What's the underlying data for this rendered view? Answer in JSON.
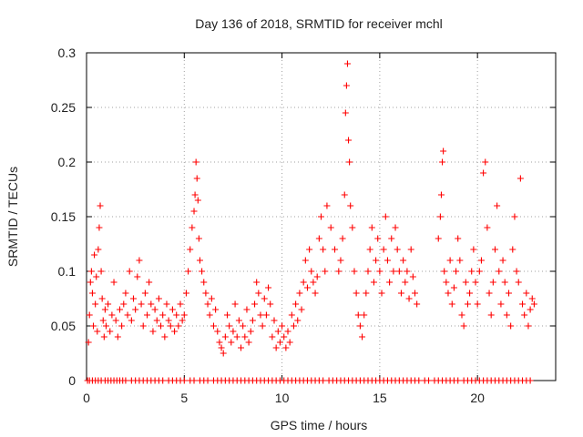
{
  "chart_data": {
    "type": "scatter",
    "title": "Day 136 of 2018, SRMTID for receiver mchl",
    "xlabel": "GPS time / hours",
    "ylabel": "SRMTID / TECUs",
    "xlim": [
      0,
      24
    ],
    "ylim": [
      0,
      0.3
    ],
    "grid": true,
    "marker": "+",
    "color": "#ff0000",
    "x_ticks": [
      0,
      5,
      10,
      15,
      20
    ],
    "x_tick_labels": [
      "0",
      "5",
      "10",
      "15",
      "20"
    ],
    "y_ticks": [
      0,
      0.05,
      0.1,
      0.15,
      0.2,
      0.25,
      0.3
    ],
    "y_tick_labels": [
      "0",
      "0.05",
      "0.1",
      "0.15",
      "0.2",
      "0.25",
      "0.3"
    ],
    "series": [
      {
        "name": "SRMTID",
        "points": [
          [
            0.1,
            0.035
          ],
          [
            0.15,
            0.06
          ],
          [
            0.2,
            0.09
          ],
          [
            0.25,
            0.1
          ],
          [
            0.3,
            0.08
          ],
          [
            0.35,
            0.05
          ],
          [
            0.4,
            0.115
          ],
          [
            0.45,
            0.07
          ],
          [
            0.5,
            0.095
          ],
          [
            0.55,
            0.045
          ],
          [
            0.6,
            0.12
          ],
          [
            0.65,
            0.14
          ],
          [
            0.7,
            0.16
          ],
          [
            0.75,
            0.1
          ],
          [
            0.8,
            0.075
          ],
          [
            0.85,
            0.055
          ],
          [
            0.9,
            0.04
          ],
          [
            0.95,
            0.065
          ],
          [
            1.0,
            0.05
          ],
          [
            1.1,
            0.07
          ],
          [
            1.2,
            0.045
          ],
          [
            1.3,
            0.06
          ],
          [
            1.4,
            0.09
          ],
          [
            1.5,
            0.055
          ],
          [
            1.6,
            0.04
          ],
          [
            1.7,
            0.065
          ],
          [
            1.8,
            0.05
          ],
          [
            1.9,
            0.07
          ],
          [
            2.0,
            0.08
          ],
          [
            2.1,
            0.06
          ],
          [
            2.2,
            0.1
          ],
          [
            2.3,
            0.055
          ],
          [
            2.4,
            0.075
          ],
          [
            2.5,
            0.065
          ],
          [
            2.6,
            0.095
          ],
          [
            2.7,
            0.11
          ],
          [
            2.8,
            0.07
          ],
          [
            2.9,
            0.05
          ],
          [
            3.0,
            0.08
          ],
          [
            3.1,
            0.06
          ],
          [
            3.2,
            0.09
          ],
          [
            3.3,
            0.07
          ],
          [
            3.4,
            0.045
          ],
          [
            3.5,
            0.065
          ],
          [
            3.6,
            0.055
          ],
          [
            3.7,
            0.075
          ],
          [
            3.8,
            0.05
          ],
          [
            3.9,
            0.06
          ],
          [
            4.0,
            0.04
          ],
          [
            4.1,
            0.07
          ],
          [
            4.2,
            0.055
          ],
          [
            4.3,
            0.05
          ],
          [
            4.4,
            0.065
          ],
          [
            4.5,
            0.045
          ],
          [
            4.6,
            0.06
          ],
          [
            4.7,
            0.05
          ],
          [
            4.8,
            0.07
          ],
          [
            4.9,
            0.055
          ],
          [
            5.0,
            0.06
          ],
          [
            5.1,
            0.08
          ],
          [
            5.2,
            0.1
          ],
          [
            5.3,
            0.12
          ],
          [
            5.4,
            0.14
          ],
          [
            5.5,
            0.155
          ],
          [
            5.55,
            0.17
          ],
          [
            5.6,
            0.2
          ],
          [
            5.65,
            0.185
          ],
          [
            5.7,
            0.165
          ],
          [
            5.75,
            0.13
          ],
          [
            5.8,
            0.11
          ],
          [
            5.9,
            0.1
          ],
          [
            6.0,
            0.09
          ],
          [
            6.1,
            0.08
          ],
          [
            6.2,
            0.07
          ],
          [
            6.3,
            0.06
          ],
          [
            6.4,
            0.075
          ],
          [
            6.5,
            0.05
          ],
          [
            6.6,
            0.065
          ],
          [
            6.7,
            0.045
          ],
          [
            6.8,
            0.035
          ],
          [
            6.9,
            0.03
          ],
          [
            7.0,
            0.025
          ],
          [
            7.1,
            0.04
          ],
          [
            7.2,
            0.06
          ],
          [
            7.3,
            0.05
          ],
          [
            7.4,
            0.035
          ],
          [
            7.5,
            0.045
          ],
          [
            7.6,
            0.07
          ],
          [
            7.7,
            0.04
          ],
          [
            7.8,
            0.055
          ],
          [
            7.9,
            0.03
          ],
          [
            8.0,
            0.05
          ],
          [
            8.1,
            0.04
          ],
          [
            8.2,
            0.065
          ],
          [
            8.3,
            0.035
          ],
          [
            8.4,
            0.045
          ],
          [
            8.5,
            0.055
          ],
          [
            8.6,
            0.07
          ],
          [
            8.7,
            0.09
          ],
          [
            8.8,
            0.08
          ],
          [
            8.9,
            0.06
          ],
          [
            9.0,
            0.05
          ],
          [
            9.1,
            0.075
          ],
          [
            9.2,
            0.06
          ],
          [
            9.3,
            0.085
          ],
          [
            9.4,
            0.07
          ],
          [
            9.5,
            0.04
          ],
          [
            9.6,
            0.055
          ],
          [
            9.7,
            0.03
          ],
          [
            9.8,
            0.045
          ],
          [
            9.9,
            0.035
          ],
          [
            10.0,
            0.05
          ],
          [
            10.1,
            0.04
          ],
          [
            10.2,
            0.03
          ],
          [
            10.3,
            0.045
          ],
          [
            10.4,
            0.035
          ],
          [
            10.5,
            0.06
          ],
          [
            10.6,
            0.05
          ],
          [
            10.7,
            0.07
          ],
          [
            10.8,
            0.055
          ],
          [
            10.9,
            0.08
          ],
          [
            11.0,
            0.065
          ],
          [
            11.1,
            0.09
          ],
          [
            11.2,
            0.11
          ],
          [
            11.3,
            0.085
          ],
          [
            11.4,
            0.12
          ],
          [
            11.5,
            0.1
          ],
          [
            11.6,
            0.09
          ],
          [
            11.7,
            0.08
          ],
          [
            11.8,
            0.095
          ],
          [
            11.9,
            0.13
          ],
          [
            12.0,
            0.15
          ],
          [
            12.1,
            0.12
          ],
          [
            12.2,
            0.1
          ],
          [
            12.3,
            0.16
          ],
          [
            12.5,
            0.14
          ],
          [
            12.7,
            0.12
          ],
          [
            12.9,
            0.1
          ],
          [
            13.0,
            0.11
          ],
          [
            13.1,
            0.13
          ],
          [
            13.2,
            0.17
          ],
          [
            13.25,
            0.245
          ],
          [
            13.3,
            0.27
          ],
          [
            13.35,
            0.29
          ],
          [
            13.4,
            0.22
          ],
          [
            13.45,
            0.2
          ],
          [
            13.5,
            0.16
          ],
          [
            13.6,
            0.14
          ],
          [
            13.7,
            0.1
          ],
          [
            13.8,
            0.08
          ],
          [
            13.9,
            0.06
          ],
          [
            14.0,
            0.05
          ],
          [
            14.1,
            0.04
          ],
          [
            14.2,
            0.06
          ],
          [
            14.3,
            0.08
          ],
          [
            14.4,
            0.1
          ],
          [
            14.5,
            0.12
          ],
          [
            14.6,
            0.14
          ],
          [
            14.7,
            0.09
          ],
          [
            14.8,
            0.11
          ],
          [
            14.9,
            0.13
          ],
          [
            15.0,
            0.1
          ],
          [
            15.1,
            0.08
          ],
          [
            15.2,
            0.12
          ],
          [
            15.3,
            0.15
          ],
          [
            15.4,
            0.11
          ],
          [
            15.5,
            0.09
          ],
          [
            15.6,
            0.13
          ],
          [
            15.7,
            0.1
          ],
          [
            15.8,
            0.14
          ],
          [
            15.9,
            0.12
          ],
          [
            16.0,
            0.1
          ],
          [
            16.1,
            0.08
          ],
          [
            16.2,
            0.11
          ],
          [
            16.3,
            0.09
          ],
          [
            16.4,
            0.1
          ],
          [
            16.5,
            0.075
          ],
          [
            16.6,
            0.12
          ],
          [
            16.7,
            0.095
          ],
          [
            16.8,
            0.08
          ],
          [
            16.9,
            0.07
          ],
          [
            18.0,
            0.13
          ],
          [
            18.1,
            0.15
          ],
          [
            18.15,
            0.17
          ],
          [
            18.2,
            0.2
          ],
          [
            18.25,
            0.21
          ],
          [
            18.3,
            0.1
          ],
          [
            18.4,
            0.09
          ],
          [
            18.5,
            0.08
          ],
          [
            18.6,
            0.11
          ],
          [
            18.7,
            0.07
          ],
          [
            18.8,
            0.085
          ],
          [
            18.9,
            0.1
          ],
          [
            19.0,
            0.13
          ],
          [
            19.1,
            0.11
          ],
          [
            19.2,
            0.06
          ],
          [
            19.3,
            0.05
          ],
          [
            19.4,
            0.09
          ],
          [
            19.5,
            0.07
          ],
          [
            19.6,
            0.08
          ],
          [
            19.7,
            0.1
          ],
          [
            19.8,
            0.12
          ],
          [
            19.9,
            0.09
          ],
          [
            20.0,
            0.07
          ],
          [
            20.1,
            0.1
          ],
          [
            20.2,
            0.11
          ],
          [
            20.3,
            0.19
          ],
          [
            20.4,
            0.2
          ],
          [
            20.5,
            0.14
          ],
          [
            20.6,
            0.08
          ],
          [
            20.7,
            0.06
          ],
          [
            20.8,
            0.09
          ],
          [
            20.9,
            0.12
          ],
          [
            21.0,
            0.16
          ],
          [
            21.1,
            0.1
          ],
          [
            21.2,
            0.07
          ],
          [
            21.3,
            0.11
          ],
          [
            21.4,
            0.09
          ],
          [
            21.5,
            0.06
          ],
          [
            21.6,
            0.08
          ],
          [
            21.7,
            0.05
          ],
          [
            21.8,
            0.12
          ],
          [
            21.9,
            0.15
          ],
          [
            22.0,
            0.1
          ],
          [
            22.1,
            0.09
          ],
          [
            22.2,
            0.185
          ],
          [
            22.3,
            0.07
          ],
          [
            22.4,
            0.06
          ],
          [
            22.5,
            0.08
          ],
          [
            22.6,
            0.05
          ],
          [
            22.7,
            0.065
          ],
          [
            22.8,
            0.075
          ],
          [
            22.9,
            0.07
          ]
        ]
      }
    ],
    "zero_points_x": [
      0.05,
      0.15,
      0.3,
      0.45,
      0.6,
      0.75,
      0.95,
      1.1,
      1.25,
      1.4,
      1.55,
      1.7,
      1.85,
      2.0,
      2.3,
      2.5,
      2.7,
      2.9,
      3.1,
      3.3,
      3.5,
      3.7,
      3.9,
      4.2,
      4.4,
      4.6,
      4.8,
      5.0,
      5.3,
      5.5,
      5.8,
      6.0,
      6.2,
      6.5,
      6.7,
      6.9,
      7.1,
      7.3,
      7.5,
      7.7,
      7.9,
      8.1,
      8.3,
      8.5,
      8.7,
      8.9,
      9.1,
      9.3,
      9.5,
      9.7,
      9.9,
      10.1,
      10.3,
      10.5,
      10.7,
      10.9,
      11.1,
      11.3,
      11.5,
      11.7,
      11.9,
      12.1,
      12.4,
      12.6,
      12.8,
      13.0,
      13.2,
      13.4,
      13.6,
      13.8,
      14.0,
      14.2,
      14.4,
      14.6,
      14.8,
      15.0,
      15.2,
      15.4,
      15.6,
      15.8,
      16.0,
      16.2,
      16.4,
      16.6,
      16.8,
      17.0,
      17.3,
      17.5,
      17.8,
      18.0,
      18.2,
      18.4,
      18.6,
      18.8,
      19.0,
      19.3,
      19.5,
      19.7,
      19.9,
      20.1,
      20.3,
      20.5,
      20.7,
      20.9,
      21.1,
      21.3,
      21.5,
      21.7,
      21.9,
      22.1,
      22.3,
      22.5,
      22.7
    ]
  }
}
